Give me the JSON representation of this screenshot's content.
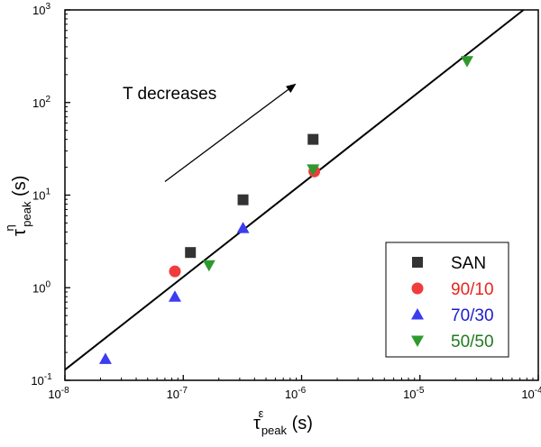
{
  "chart_data": {
    "type": "scatter",
    "xscale": "log",
    "yscale": "log",
    "xlim": [
      1e-08,
      0.0001
    ],
    "ylim": [
      0.1,
      1000
    ],
    "x_ticks": [
      {
        "value": 1e-08,
        "base": "10",
        "exp": "-8"
      },
      {
        "value": 1e-07,
        "base": "10",
        "exp": "-7"
      },
      {
        "value": 1e-06,
        "base": "10",
        "exp": "-6"
      },
      {
        "value": 1e-05,
        "base": "10",
        "exp": "-5"
      },
      {
        "value": 0.0001,
        "base": "10",
        "exp": "-4"
      }
    ],
    "y_ticks": [
      {
        "value": 0.1,
        "base": "10",
        "exp": "-1"
      },
      {
        "value": 1,
        "base": "10",
        "exp": "0"
      },
      {
        "value": 10,
        "base": "10",
        "exp": "1"
      },
      {
        "value": 100,
        "base": "10",
        "exp": "2"
      },
      {
        "value": 1000,
        "base": "10",
        "exp": "3"
      }
    ],
    "xlabel": {
      "main": "τ",
      "sup": "ε",
      "sub": "peak",
      "unit": " (s)"
    },
    "ylabel": {
      "main": "τ",
      "sup": "η",
      "sub": "peak",
      "unit": " (s)"
    },
    "legend_position": "bottom-right",
    "series": [
      {
        "name": "SAN",
        "marker": "square",
        "color": "#333333",
        "text_color": "#000000",
        "points": [
          {
            "x": 1.15e-07,
            "y": 2.4
          },
          {
            "x": 3.2e-07,
            "y": 8.9
          },
          {
            "x": 1.25e-06,
            "y": 40
          }
        ]
      },
      {
        "name": "90/10",
        "marker": "circle",
        "color": "#f03c3c",
        "text_color": "#e8251e",
        "points": [
          {
            "x": 8.5e-08,
            "y": 1.5
          },
          {
            "x": 1.28e-06,
            "y": 18
          }
        ]
      },
      {
        "name": "70/30",
        "marker": "triangle-up",
        "color": "#3c3cf0",
        "text_color": "#1c1cd0",
        "points": [
          {
            "x": 2.2e-08,
            "y": 0.17
          },
          {
            "x": 8.5e-08,
            "y": 0.8
          },
          {
            "x": 3.2e-07,
            "y": 4.4
          }
        ]
      },
      {
        "name": "50/50",
        "marker": "triangle-down",
        "color": "#2e9a2e",
        "text_color": "#1f7a1f",
        "points": [
          {
            "x": 1.65e-07,
            "y": 1.75
          },
          {
            "x": 1.25e-06,
            "y": 19
          },
          {
            "x": 2.5e-05,
            "y": 280
          }
        ]
      }
    ],
    "fit_line": {
      "points": [
        {
          "x": 1e-08,
          "y": 0.13
        },
        {
          "x": 7.5e-05,
          "y": 1000
        }
      ]
    },
    "annotation": {
      "text": "T decreases",
      "arrow": {
        "from": {
          "x": 7e-08,
          "y": 14
        },
        "to": {
          "x": 9e-07,
          "y": 160
        }
      }
    }
  }
}
